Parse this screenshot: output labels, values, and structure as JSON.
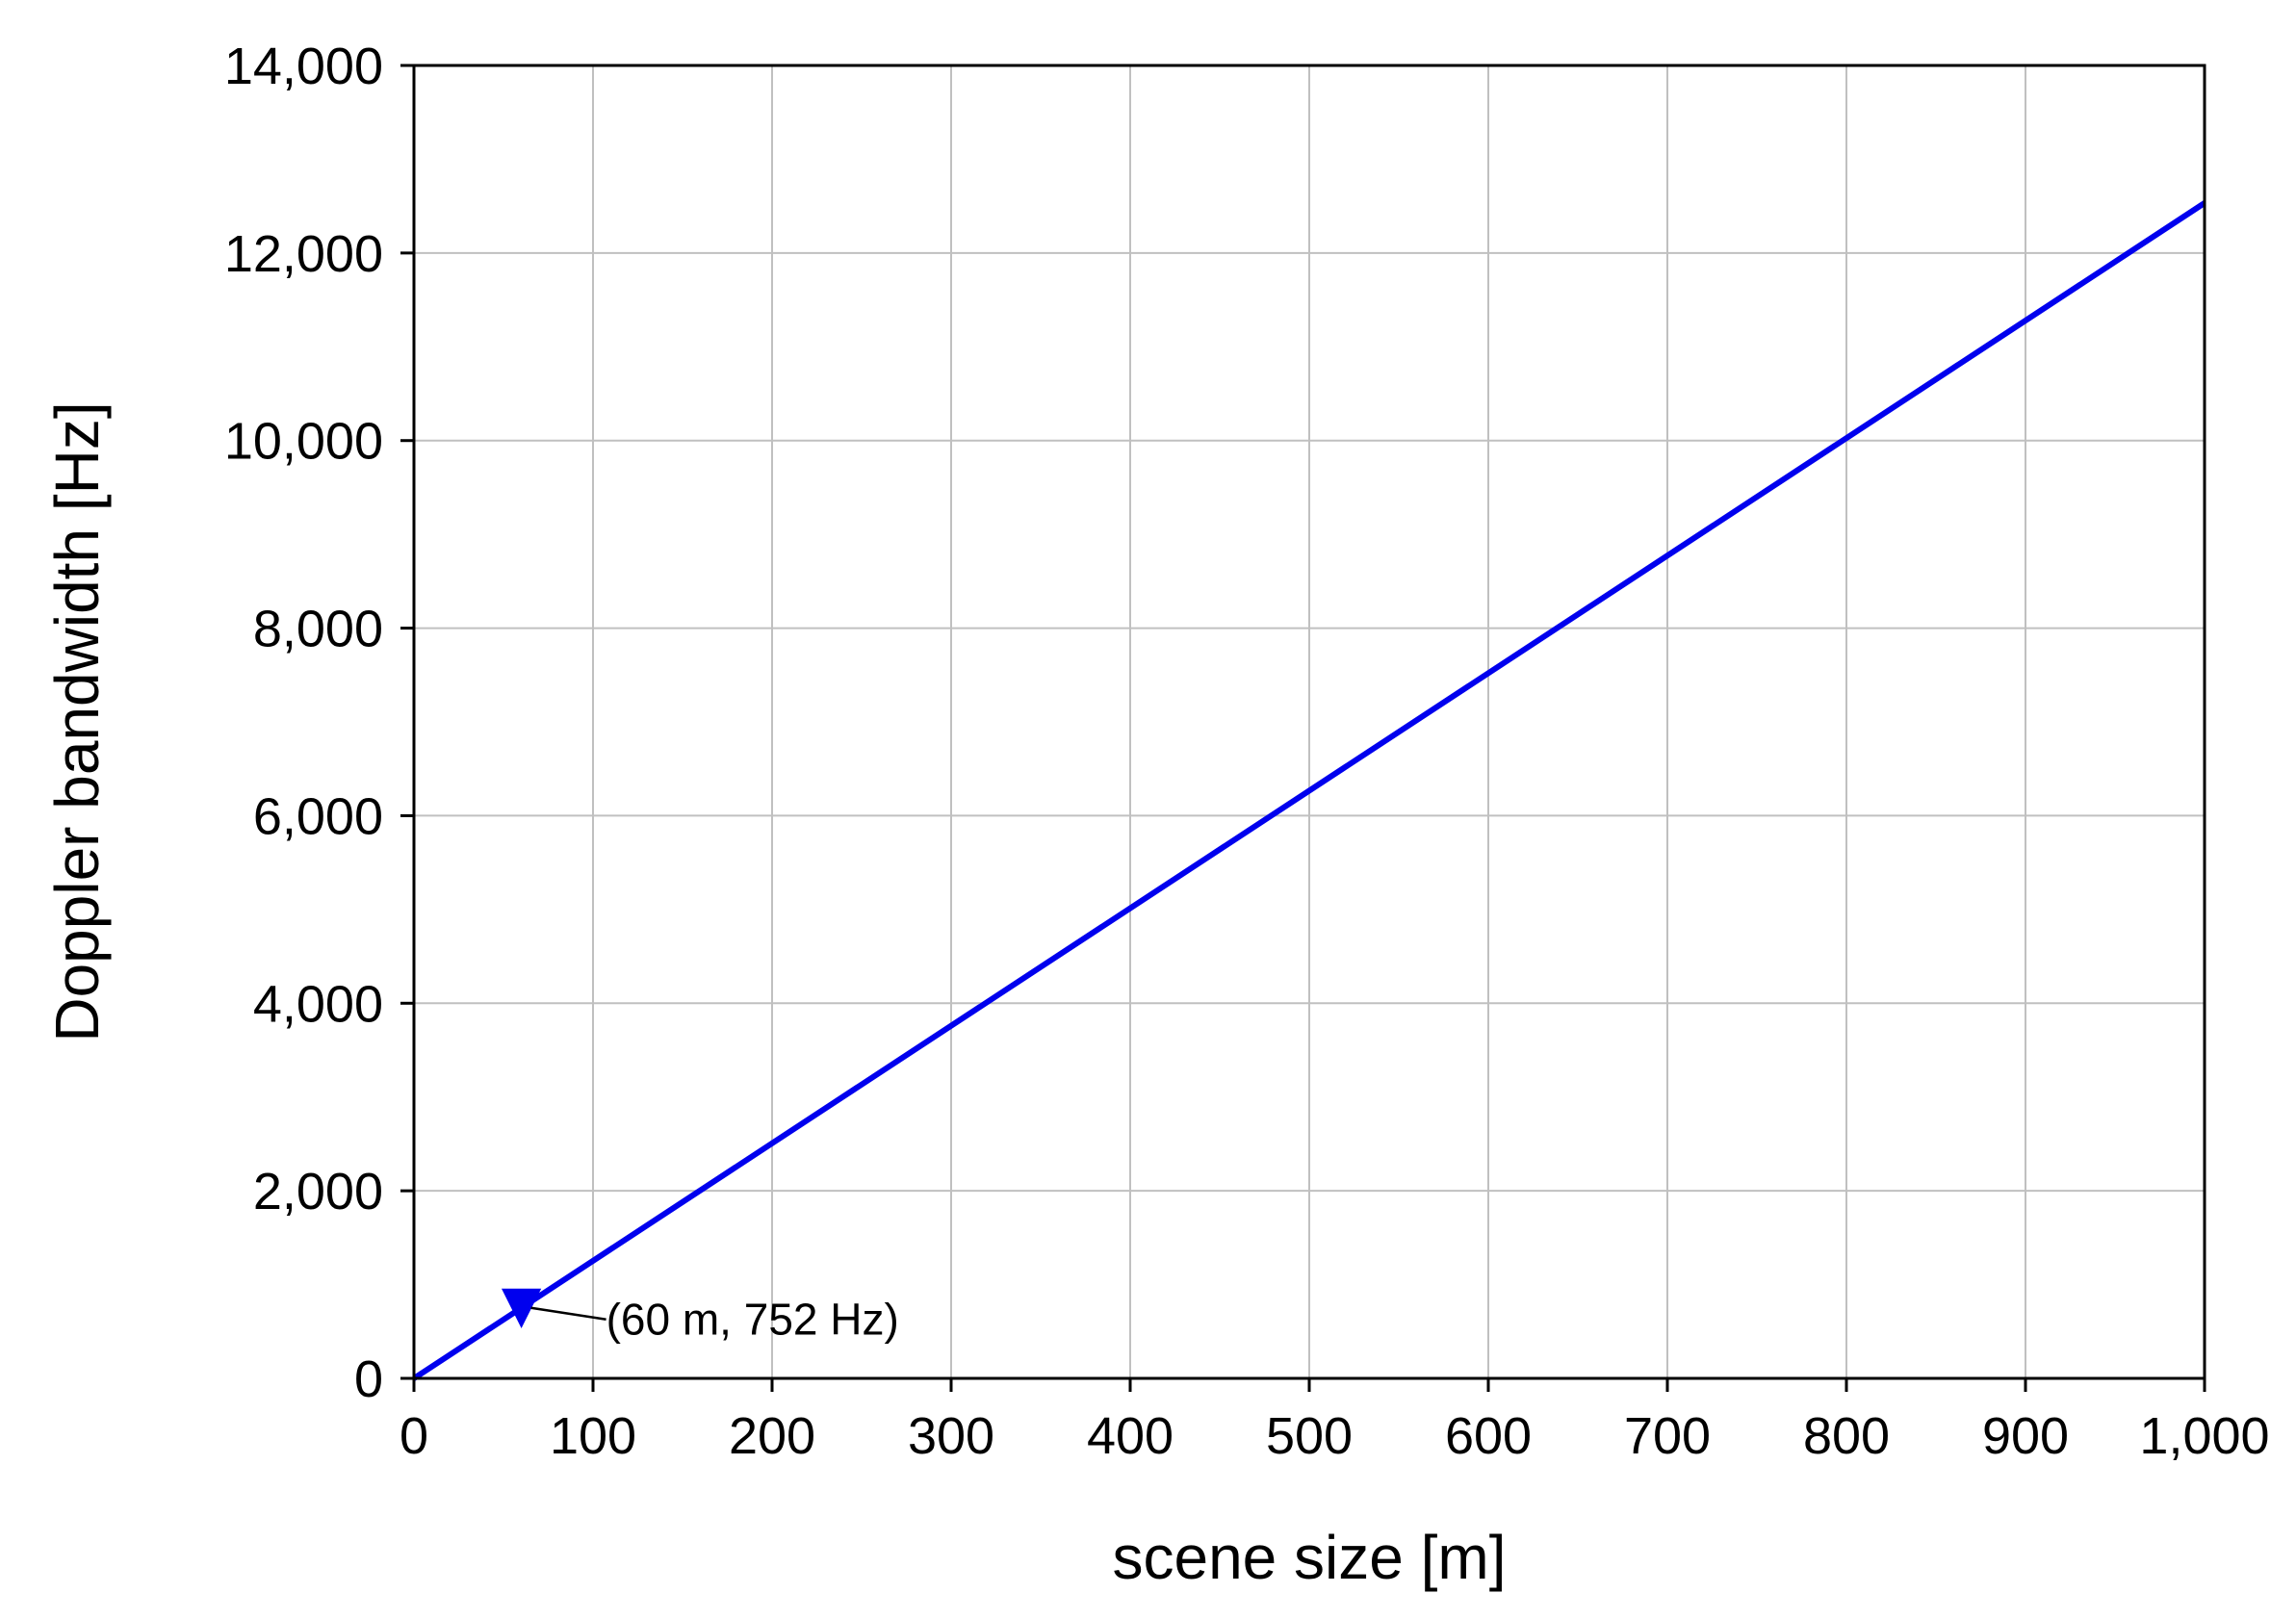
{
  "chart_data": {
    "type": "line",
    "title": "",
    "xlabel": "scene size [m]",
    "ylabel": "Doppler bandwidth [Hz]",
    "xlim": [
      0,
      1000
    ],
    "ylim": [
      0,
      14000
    ],
    "x_ticks": [
      0,
      100,
      200,
      300,
      400,
      500,
      600,
      700,
      800,
      900,
      1000
    ],
    "x_tick_labels": [
      "0",
      "100",
      "200",
      "300",
      "400",
      "500",
      "600",
      "700",
      "800",
      "900",
      "1,000"
    ],
    "y_ticks": [
      0,
      2000,
      4000,
      6000,
      8000,
      10000,
      12000,
      14000
    ],
    "y_tick_labels": [
      "0",
      "2,000",
      "4,000",
      "6,000",
      "8,000",
      "10,000",
      "12,000",
      "14,000"
    ],
    "grid": true,
    "series": [
      {
        "color": "#0000ee",
        "x": [
          0,
          1000
        ],
        "y": [
          0,
          12533
        ]
      }
    ],
    "markers": [
      {
        "shape": "down-triangle",
        "color": "#0000ee",
        "x": 60,
        "y": 752,
        "label": "(60 m, 752 Hz)"
      }
    ]
  }
}
